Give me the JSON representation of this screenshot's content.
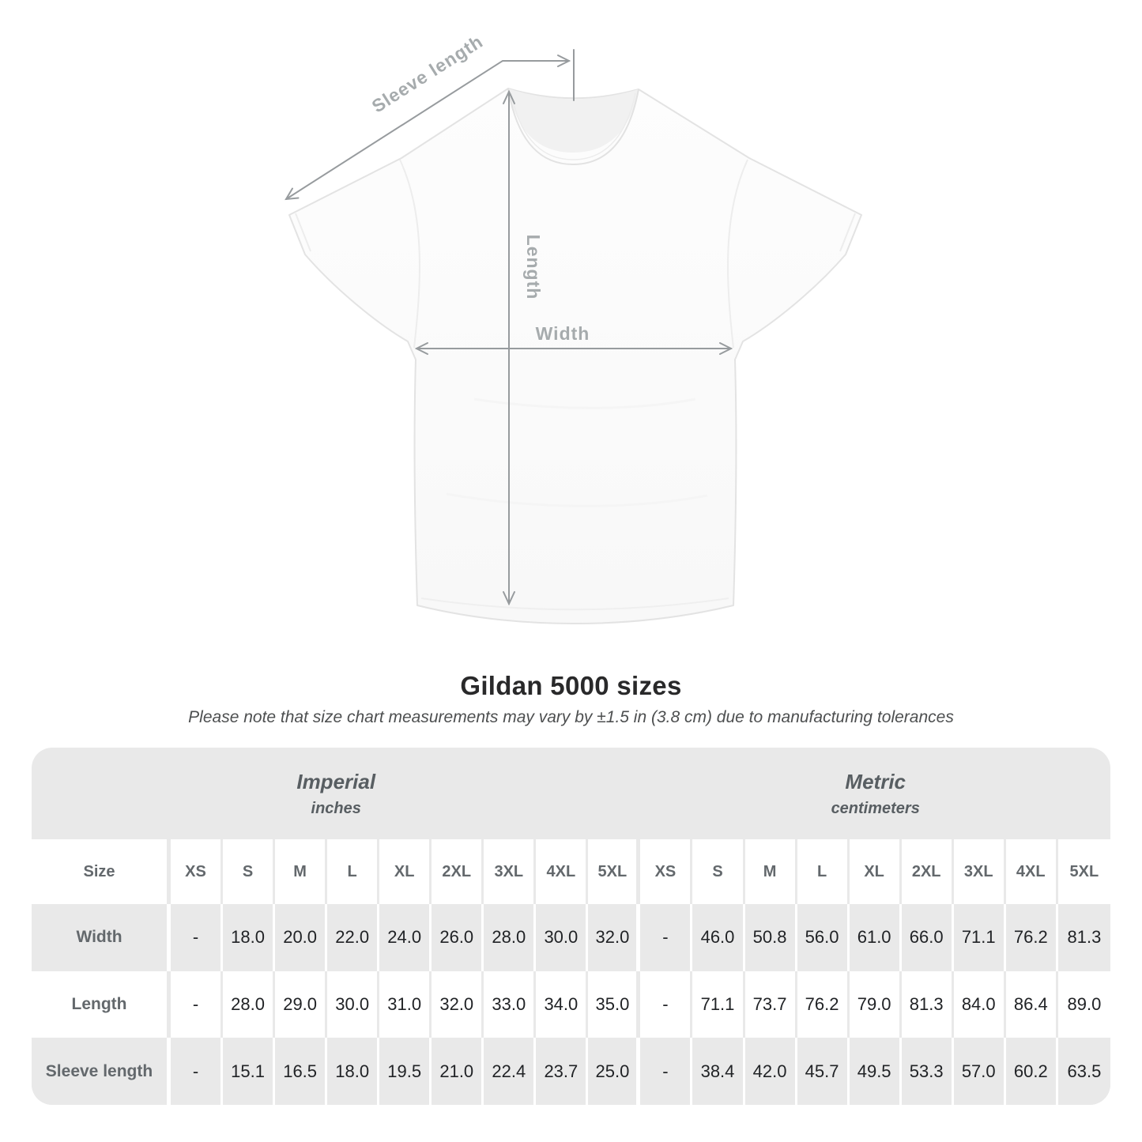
{
  "page": {
    "background": "#ffffff"
  },
  "diagram": {
    "sleeve_length_label": "Sleeve length",
    "length_label": "Length",
    "width_label": "Width",
    "line_color": "#979b9e",
    "label_color": "#a6abad"
  },
  "header": {
    "title": "Gildan 5000 sizes",
    "subtitle": "Please note that size chart measurements may vary by ±1.5 in (3.8 cm) due to manufacturing tolerances"
  },
  "table": {
    "background": "#e9e9e9",
    "size_header": "Size",
    "sections": [
      {
        "label": "Imperial",
        "unit": "inches"
      },
      {
        "label": "Metric",
        "unit": "centimeters"
      }
    ],
    "sizes": [
      "XS",
      "S",
      "M",
      "L",
      "XL",
      "2XL",
      "3XL",
      "4XL",
      "5XL"
    ],
    "rows": [
      {
        "key": "width",
        "label": "Width",
        "imperial": [
          "-",
          "18.0",
          "20.0",
          "22.0",
          "24.0",
          "26.0",
          "28.0",
          "30.0",
          "32.0"
        ],
        "metric": [
          "-",
          "46.0",
          "50.8",
          "56.0",
          "61.0",
          "66.0",
          "71.1",
          "76.2",
          "81.3"
        ]
      },
      {
        "key": "length",
        "label": "Length",
        "imperial": [
          "-",
          "28.0",
          "29.0",
          "30.0",
          "31.0",
          "32.0",
          "33.0",
          "34.0",
          "35.0"
        ],
        "metric": [
          "-",
          "71.1",
          "73.7",
          "76.2",
          "79.0",
          "81.3",
          "84.0",
          "86.4",
          "89.0"
        ]
      },
      {
        "key": "sleeve_length",
        "label": "Sleeve length",
        "imperial": [
          "-",
          "15.1",
          "16.5",
          "18.0",
          "19.5",
          "21.0",
          "22.4",
          "23.7",
          "25.0"
        ],
        "metric": [
          "-",
          "38.4",
          "42.0",
          "45.7",
          "49.5",
          "53.3",
          "57.0",
          "60.2",
          "63.5"
        ]
      }
    ]
  },
  "chart_data": {
    "type": "table",
    "title": "Gildan 5000 sizes",
    "note": "Please note that size chart measurements may vary by ±1.5 in (3.8 cm) due to manufacturing tolerances",
    "unit_groups": [
      {
        "name": "Imperial",
        "unit": "inches"
      },
      {
        "name": "Metric",
        "unit": "centimeters"
      }
    ],
    "sizes": [
      "XS",
      "S",
      "M",
      "L",
      "XL",
      "2XL",
      "3XL",
      "4XL",
      "5XL"
    ],
    "measurements": [
      {
        "name": "Width",
        "imperial_in": [
          null,
          18.0,
          20.0,
          22.0,
          24.0,
          26.0,
          28.0,
          30.0,
          32.0
        ],
        "metric_cm": [
          null,
          46.0,
          50.8,
          56.0,
          61.0,
          66.0,
          71.1,
          76.2,
          81.3
        ]
      },
      {
        "name": "Length",
        "imperial_in": [
          null,
          28.0,
          29.0,
          30.0,
          31.0,
          32.0,
          33.0,
          34.0,
          35.0
        ],
        "metric_cm": [
          null,
          71.1,
          73.7,
          76.2,
          79.0,
          81.3,
          84.0,
          86.4,
          89.0
        ]
      },
      {
        "name": "Sleeve length",
        "imperial_in": [
          null,
          15.1,
          16.5,
          18.0,
          19.5,
          21.0,
          22.4,
          23.7,
          25.0
        ],
        "metric_cm": [
          null,
          38.4,
          42.0,
          45.7,
          49.5,
          53.3,
          57.0,
          60.2,
          63.5
        ]
      }
    ]
  }
}
